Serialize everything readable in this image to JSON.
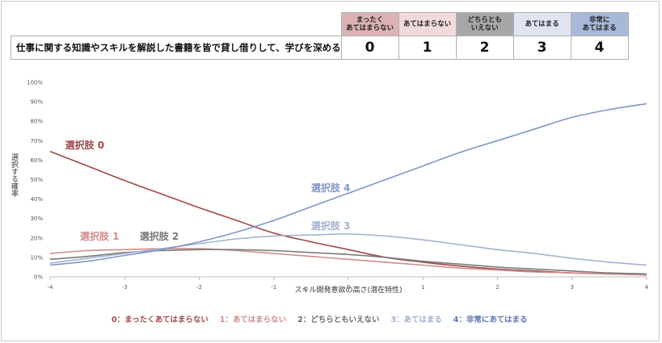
{
  "survey": {
    "question": "仕事に関する知識やスキルを解説した書籍を皆で貸し借りして、学びを深める",
    "headers": [
      {
        "label": "まったく\nあてはまらない",
        "color": "#dcb2b4"
      },
      {
        "label": "あてはまらない",
        "color": "#f1dadb"
      },
      {
        "label": "どちらとも\nいえない",
        "color": "#a7a7a7"
      },
      {
        "label": "あてはまる",
        "color": "#dfe4f1"
      },
      {
        "label": "非常に\nあてはまる",
        "color": "#a8b8d8"
      }
    ],
    "values": [
      "0",
      "1",
      "2",
      "3",
      "4"
    ]
  },
  "chart_data": {
    "type": "line",
    "xlabel": "スキル開発意欲の高さ(潜在特性)",
    "ylabel": "選択する確率",
    "xlim": [
      -4,
      4
    ],
    "ylim": [
      0,
      100
    ],
    "x_ticks": [
      "-4",
      "-3",
      "-2",
      "-1",
      "0",
      "1",
      "2",
      "3",
      "4"
    ],
    "y_ticks": [
      "0%",
      "10%",
      "20%",
      "30%",
      "40%",
      "50%",
      "60%",
      "70%",
      "80%",
      "90%",
      "100%"
    ],
    "grid": false,
    "x": [
      -4,
      -3.5,
      -3,
      -2.5,
      -2,
      -1.5,
      -1,
      -0.5,
      0,
      0.5,
      1,
      1.5,
      2,
      2.5,
      3,
      3.5,
      4
    ],
    "series": [
      {
        "name": "選択肢 0",
        "color": "#a04848",
        "label_pos": [
          -3.8,
          66
        ],
        "values": [
          64.5,
          57,
          49.5,
          42.5,
          35.5,
          29,
          22.5,
          18,
          14,
          10,
          7.5,
          5.5,
          4,
          3,
          2,
          1.5,
          1
        ]
      },
      {
        "name": "選択肢 1",
        "color": "#cf8d8d",
        "label_pos": [
          -3.6,
          19
        ],
        "values": [
          12,
          13.5,
          14,
          14.5,
          14.5,
          13.5,
          12,
          10.5,
          9,
          7.5,
          6,
          4.5,
          3.5,
          2.5,
          2,
          1.5,
          1
        ]
      },
      {
        "name": "選択肢 2",
        "color": "#7a7a7a",
        "label_pos": [
          -2.8,
          19
        ],
        "values": [
          9,
          10.5,
          12.5,
          13.5,
          14,
          14,
          13.5,
          12.5,
          11.5,
          10,
          8,
          6.5,
          5,
          4,
          3,
          2,
          1.5
        ]
      },
      {
        "name": "選択肢 3",
        "color": "#a3b2d3",
        "label_pos": [
          -0.5,
          24.5
        ],
        "values": [
          7,
          9.5,
          12,
          14.5,
          17,
          19.5,
          21,
          21.5,
          22,
          21,
          19,
          16.5,
          14,
          12,
          9.5,
          7.5,
          6
        ]
      },
      {
        "name": "選択肢 4",
        "color": "#7f97c6",
        "label_pos": [
          -0.5,
          44
        ],
        "values": [
          6,
          8,
          11,
          14,
          18,
          23,
          29,
          36,
          43,
          50,
          57,
          64,
          70,
          76,
          82,
          86,
          89
        ]
      }
    ],
    "legend": {
      "position": "bottom",
      "items": [
        {
          "label": "0：まったくあてはまらない",
          "color": "#a04848"
        },
        {
          "label": "1：あてはまらない",
          "color": "#cf8d8d"
        },
        {
          "label": "2：どちらともいえない",
          "color": "#6a6a6a"
        },
        {
          "label": "3：あてはまる",
          "color": "#9fb0d2"
        },
        {
          "label": "4：非常にあてはまる",
          "color": "#5d78b3"
        }
      ]
    }
  }
}
